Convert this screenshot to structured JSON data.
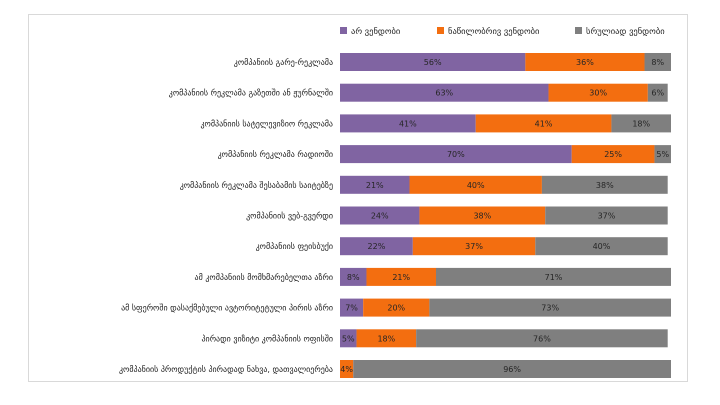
{
  "chart_data": {
    "type": "bar",
    "orientation": "horizontal",
    "stacked": "percent",
    "categories": [
      "კომპანიის გარე-რეკლამა",
      "კომპანიის რეკლამა გაზეთში ან ჟურნალში",
      "კომპანიის სატელევიზიო რეკლამა",
      "კომპანიის  რეკლამა რადიოში",
      "კომპანიის რეკლამა შესაბამის საიტებზე",
      "კომპანიის ვებ-გვერდი",
      "კომპანიის ფეისბუქი",
      "ამ კომპანიის მომხმარებელთა აზრი",
      "ამ სფეროში დასაქმებული ავტორიტეტული პირის აზრი",
      "პირადი ვიზიტი კომპანიის ოფისში",
      "კომპანიის პროდუქტის პირადად ნახვა, დათვალიერება"
    ],
    "series": [
      {
        "name": "არ ვენდობი",
        "color": "#8064a2",
        "values": [
          56,
          63,
          41,
          70,
          21,
          24,
          22,
          8,
          7,
          5,
          0
        ],
        "labels": [
          "56%",
          "63%",
          "41%",
          "70%",
          "21%",
          "24%",
          "22%",
          "8%",
          "7%",
          "5%",
          ""
        ]
      },
      {
        "name": "ნაწილობრივ ვენდობი",
        "color": "#f36e10",
        "values": [
          36,
          30,
          41,
          25,
          40,
          38,
          37,
          21,
          20,
          18,
          4
        ],
        "labels": [
          "36%",
          "30%",
          "41%",
          "25%",
          "40%",
          "38%",
          "37%",
          "21%",
          "20%",
          "18%",
          "4%"
        ]
      },
      {
        "name": "სრულიად ვენდობი",
        "color": "#7f7f7f",
        "values": [
          8,
          6,
          18,
          5,
          38,
          37,
          40,
          71,
          73,
          76,
          96
        ],
        "labels": [
          "8%",
          "6%",
          "18%",
          "5%",
          "38%",
          "37%",
          "40%",
          "71%",
          "73%",
          "76%",
          "96%"
        ]
      }
    ],
    "xlim": [
      0,
      100
    ],
    "legend_position": "top-right",
    "grid": false,
    "title": ""
  }
}
